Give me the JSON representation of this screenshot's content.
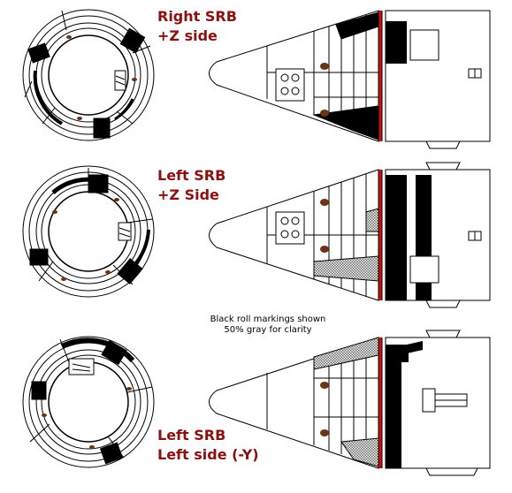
{
  "labels": {
    "right_srb": {
      "line1": "Right SRB",
      "line2": "+Z side"
    },
    "left_srb_z": {
      "line1": "Left SRB",
      "line2": "+Z Side"
    },
    "left_srb_y": {
      "line1": "Left SRB",
      "line2": "Left side (-Y)"
    }
  },
  "note": {
    "line1": "Black roll markings shown",
    "line2": "50% gray for clarity"
  },
  "colors": {
    "label_text": "#8b1010",
    "marking": "#000000",
    "red_stripe": "#cc1111",
    "nut_brown": "#6b3515",
    "gray_pattern": "#777777"
  }
}
